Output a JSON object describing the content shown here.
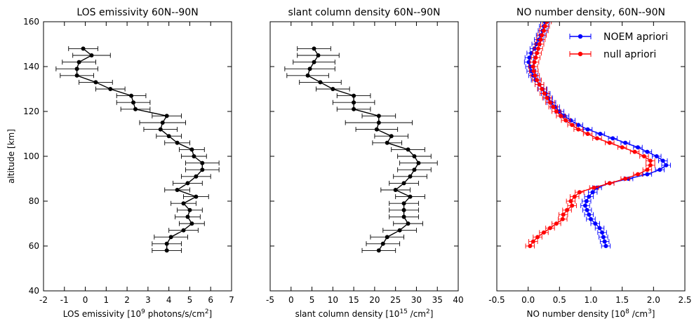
{
  "figure": {
    "ylabel": "altitude [km]"
  },
  "chart_data": [
    {
      "type": "line",
      "title": "LOS emissivity 60N--90N",
      "xlabel_main": "LOS emissivity [10",
      "xlabel_sup1": "9",
      "xlabel_mid": " photons/s/cm",
      "xlabel_sup2": "2",
      "xlabel_end": "]",
      "ylabel": "altitude [km]",
      "xlim": [
        -2,
        7
      ],
      "ylim": [
        40,
        160
      ],
      "xticks": [
        "-2",
        "-1",
        "0",
        "1",
        "2",
        "3",
        "4",
        "5",
        "6",
        "7"
      ],
      "yticks": [
        "40",
        "60",
        "80",
        "100",
        "120",
        "140",
        "160"
      ],
      "series": [
        {
          "color": "#000000",
          "points": [
            [
              3.9,
              58
            ],
            [
              3.9,
              61
            ],
            [
              4.1,
              64
            ],
            [
              4.7,
              67
            ],
            [
              5.1,
              70
            ],
            [
              4.9,
              73
            ],
            [
              5.0,
              76
            ],
            [
              4.7,
              79
            ],
            [
              5.3,
              82
            ],
            [
              4.4,
              85
            ],
            [
              4.9,
              88
            ],
            [
              5.3,
              91
            ],
            [
              5.6,
              94
            ],
            [
              5.6,
              97
            ],
            [
              5.2,
              100
            ],
            [
              5.1,
              103
            ],
            [
              4.4,
              106
            ],
            [
              4.0,
              109
            ],
            [
              3.6,
              112
            ],
            [
              3.7,
              115
            ],
            [
              3.9,
              118
            ],
            [
              2.4,
              121
            ],
            [
              2.3,
              124
            ],
            [
              2.2,
              127
            ],
            [
              1.2,
              130
            ],
            [
              0.5,
              133
            ],
            [
              -0.4,
              136
            ],
            [
              -0.4,
              139
            ],
            [
              -0.3,
              142
            ],
            [
              0.3,
              145
            ],
            [
              -0.1,
              148
            ]
          ],
          "xerr": [
            0.7,
            0.7,
            0.8,
            0.7,
            0.6,
            0.6,
            0.6,
            0.6,
            0.6,
            0.6,
            0.7,
            0.7,
            0.8,
            0.8,
            0.6,
            0.6,
            0.6,
            0.6,
            0.8,
            1.1,
            0.7,
            0.7,
            0.8,
            0.7,
            0.7,
            0.8,
            0.8,
            1.0,
            0.8,
            0.9,
            0.7
          ]
        }
      ]
    },
    {
      "type": "line",
      "title": "slant column density 60N--90N",
      "xlabel_main": "slant column density [10",
      "xlabel_sup1": "15",
      "xlabel_mid": " /cm",
      "xlabel_sup2": "2",
      "xlabel_end": "]",
      "xlim": [
        -5,
        40
      ],
      "ylim": [
        40,
        160
      ],
      "xticks": [
        "-5",
        "0",
        "5",
        "10",
        "15",
        "20",
        "25",
        "30",
        "35",
        "40"
      ],
      "series": [
        {
          "color": "#000000",
          "points": [
            [
              21,
              58
            ],
            [
              22,
              61
            ],
            [
              23,
              64
            ],
            [
              26,
              67
            ],
            [
              28,
              70
            ],
            [
              27,
              73
            ],
            [
              27,
              76
            ],
            [
              27,
              79
            ],
            [
              28.5,
              82
            ],
            [
              25,
              85
            ],
            [
              27,
              88
            ],
            [
              28.5,
              91
            ],
            [
              29.5,
              94
            ],
            [
              30.5,
              97
            ],
            [
              29.5,
              100
            ],
            [
              28,
              103
            ],
            [
              23,
              106
            ],
            [
              24,
              109
            ],
            [
              20.5,
              112
            ],
            [
              21,
              115
            ],
            [
              21,
              118
            ],
            [
              15,
              121
            ],
            [
              15,
              124
            ],
            [
              15,
              127
            ],
            [
              10,
              130
            ],
            [
              7,
              133
            ],
            [
              4,
              136
            ],
            [
              4.5,
              139
            ],
            [
              5.5,
              142
            ],
            [
              6.5,
              145
            ],
            [
              5.5,
              148
            ]
          ],
          "xerr": [
            4,
            4,
            4,
            4,
            3.5,
            3.5,
            3.5,
            3.5,
            3.5,
            3.5,
            3.5,
            4,
            4,
            4.5,
            4,
            4,
            3.5,
            4,
            5,
            8,
            4,
            4,
            5,
            4,
            4,
            5,
            5,
            6,
            5,
            5,
            4
          ]
        }
      ]
    },
    {
      "type": "line",
      "title": "NO number density, 60N--90N",
      "xlabel_main": "NO number density [10",
      "xlabel_sup1": "8",
      "xlabel_mid": " /cm",
      "xlabel_sup2": "3",
      "xlabel_end": "]",
      "xlim": [
        -0.5,
        2.5
      ],
      "ylim": [
        40,
        160
      ],
      "xticks": [
        "-0.5",
        "0.0",
        "0.5",
        "1.0",
        "1.5",
        "2.0",
        "2.5"
      ],
      "legend": {
        "placement": "top-right"
      },
      "series": [
        {
          "name": "NOEM apriori",
          "color": "#0000ff",
          "points": [
            [
              1.24,
              60
            ],
            [
              1.22,
              62
            ],
            [
              1.2,
              64
            ],
            [
              1.18,
              66
            ],
            [
              1.14,
              68
            ],
            [
              1.07,
              70
            ],
            [
              1.0,
              72
            ],
            [
              0.97,
              74
            ],
            [
              0.94,
              76
            ],
            [
              0.91,
              78
            ],
            [
              0.93,
              80
            ],
            [
              0.97,
              82
            ],
            [
              1.03,
              84
            ],
            [
              1.1,
              86
            ],
            [
              1.3,
              88
            ],
            [
              1.6,
              90
            ],
            [
              1.9,
              92
            ],
            [
              2.1,
              94
            ],
            [
              2.2,
              96
            ],
            [
              2.15,
              98
            ],
            [
              2.05,
              100
            ],
            [
              1.9,
              102
            ],
            [
              1.75,
              104
            ],
            [
              1.55,
              106
            ],
            [
              1.35,
              108
            ],
            [
              1.15,
              110
            ],
            [
              0.95,
              112
            ],
            [
              0.8,
              114
            ],
            [
              0.68,
              116
            ],
            [
              0.58,
              118
            ],
            [
              0.5,
              120
            ],
            [
              0.43,
              122
            ],
            [
              0.37,
              124
            ],
            [
              0.32,
              126
            ],
            [
              0.28,
              128
            ],
            [
              0.23,
              130
            ],
            [
              0.18,
              132
            ],
            [
              0.12,
              134
            ],
            [
              0.08,
              136
            ],
            [
              0.05,
              138
            ],
            [
              0.03,
              140
            ],
            [
              0.01,
              142
            ],
            [
              0.02,
              144
            ],
            [
              0.05,
              146
            ],
            [
              0.1,
              148
            ],
            [
              0.13,
              150
            ],
            [
              0.17,
              152
            ],
            [
              0.2,
              154
            ],
            [
              0.23,
              156
            ],
            [
              0.25,
              158
            ],
            [
              0.27,
              160
            ]
          ],
          "xerr_all": 0.07
        },
        {
          "name": "null apriori",
          "color": "#ff0000",
          "points": [
            [
              0.03,
              60
            ],
            [
              0.08,
              62
            ],
            [
              0.15,
              64
            ],
            [
              0.25,
              66
            ],
            [
              0.35,
              68
            ],
            [
              0.45,
              70
            ],
            [
              0.55,
              72
            ],
            [
              0.56,
              74
            ],
            [
              0.62,
              76
            ],
            [
              0.7,
              78
            ],
            [
              0.68,
              80
            ],
            [
              0.74,
              82
            ],
            [
              0.82,
              84
            ],
            [
              1.05,
              86
            ],
            [
              1.3,
              88
            ],
            [
              1.55,
              90
            ],
            [
              1.75,
              92
            ],
            [
              1.9,
              94
            ],
            [
              1.95,
              96
            ],
            [
              1.95,
              98
            ],
            [
              1.85,
              100
            ],
            [
              1.7,
              102
            ],
            [
              1.5,
              104
            ],
            [
              1.3,
              106
            ],
            [
              1.1,
              108
            ],
            [
              0.95,
              110
            ],
            [
              0.8,
              112
            ],
            [
              0.7,
              114
            ],
            [
              0.6,
              116
            ],
            [
              0.52,
              118
            ],
            [
              0.45,
              120
            ],
            [
              0.4,
              122
            ],
            [
              0.35,
              124
            ],
            [
              0.3,
              126
            ],
            [
              0.26,
              128
            ],
            [
              0.22,
              130
            ],
            [
              0.18,
              132
            ],
            [
              0.14,
              134
            ],
            [
              0.11,
              136
            ],
            [
              0.09,
              138
            ],
            [
              0.08,
              140
            ],
            [
              0.1,
              142
            ],
            [
              0.12,
              144
            ],
            [
              0.14,
              146
            ],
            [
              0.16,
              148
            ],
            [
              0.18,
              150
            ],
            [
              0.2,
              152
            ],
            [
              0.22,
              154
            ],
            [
              0.25,
              156
            ],
            [
              0.27,
              158
            ],
            [
              0.3,
              160
            ]
          ],
          "xerr_all": 0.07
        }
      ]
    }
  ]
}
